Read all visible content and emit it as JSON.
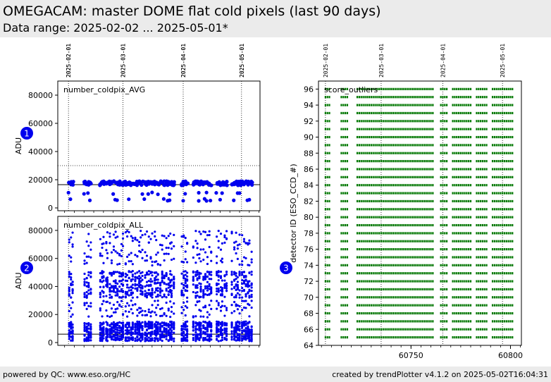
{
  "header": {
    "title": "OMEGACAM: master DOME flat cold pixels  (last 90 days)",
    "subtitle": "Data range: 2025-02-02 ... 2025-05-01*"
  },
  "footer": {
    "left": "powered by QC: www.eso.org/HC",
    "right": "created by trendPlotter v4.1.2 on 2025-05-02T16:04:31"
  },
  "colors": {
    "points": "#0000ee",
    "outliers": "#007700",
    "badge": "#0000ee",
    "header_bg": "#ebebeb"
  },
  "chart_data": [
    {
      "id": "panel1",
      "type": "scatter",
      "badge": "1",
      "label": "number_coldpix_AVG",
      "ylabel": "ADU",
      "date_ticks": [
        "2025-02-01",
        "2025-03-01",
        "2025-04-01",
        "2025-05-01"
      ],
      "xlim_mjd": [
        60701.5,
        60805.5
      ],
      "ylim": [
        -2000,
        90000
      ],
      "yticks": [
        0,
        20000,
        40000,
        60000,
        80000
      ],
      "reference_lines": {
        "solid": 16500,
        "dotted": 30000
      },
      "series": [
        {
          "values_band": [
            16000,
            19000
          ]
        },
        {
          "values_band": [
            9500,
            11000
          ]
        },
        {
          "values_band": [
            5000,
            6500
          ]
        }
      ]
    },
    {
      "id": "panel2",
      "type": "scatter",
      "badge": "2",
      "label": "number_coldpix_ALL",
      "ylabel": "ADU",
      "date_ticks": [
        "2025-02-01",
        "2025-03-01",
        "2025-04-01",
        "2025-05-01"
      ],
      "xlim_mjd": [
        60701.5,
        60805.5
      ],
      "ylim": [
        -2000,
        90000
      ],
      "yticks": [
        0,
        20000,
        40000,
        60000,
        80000
      ],
      "reference_lines": {
        "solid": 6000
      },
      "series": [
        {
          "values_band": [
            1000,
            15000
          ]
        },
        {
          "values_band": [
            18000,
            30000
          ]
        },
        {
          "values_band": [
            32000,
            51000
          ]
        },
        {
          "values_band": [
            55000,
            80000
          ]
        }
      ]
    },
    {
      "id": "panel3",
      "type": "scatter",
      "badge": "3",
      "label": "score_outliers",
      "ylabel": "detector ID (ESO_CCD_#)",
      "date_ticks": [
        "2025-02-01",
        "2025-03-01",
        "2025-04-01",
        "2025-05-01"
      ],
      "xlim_mjd": [
        60703.5,
        60805.5
      ],
      "xticks": [
        60750,
        60800
      ],
      "ylim": [
        64,
        97
      ],
      "yticks": [
        64,
        66,
        68,
        70,
        72,
        74,
        76,
        78,
        80,
        82,
        84,
        86,
        88,
        90,
        92,
        94,
        96
      ],
      "detectors": [
        65,
        66,
        67,
        68,
        69,
        70,
        71,
        72,
        73,
        74,
        75,
        76,
        77,
        78,
        79,
        80,
        81,
        82,
        83,
        84,
        85,
        86,
        87,
        88,
        89,
        90,
        91,
        92,
        93,
        94,
        95,
        96
      ]
    }
  ]
}
